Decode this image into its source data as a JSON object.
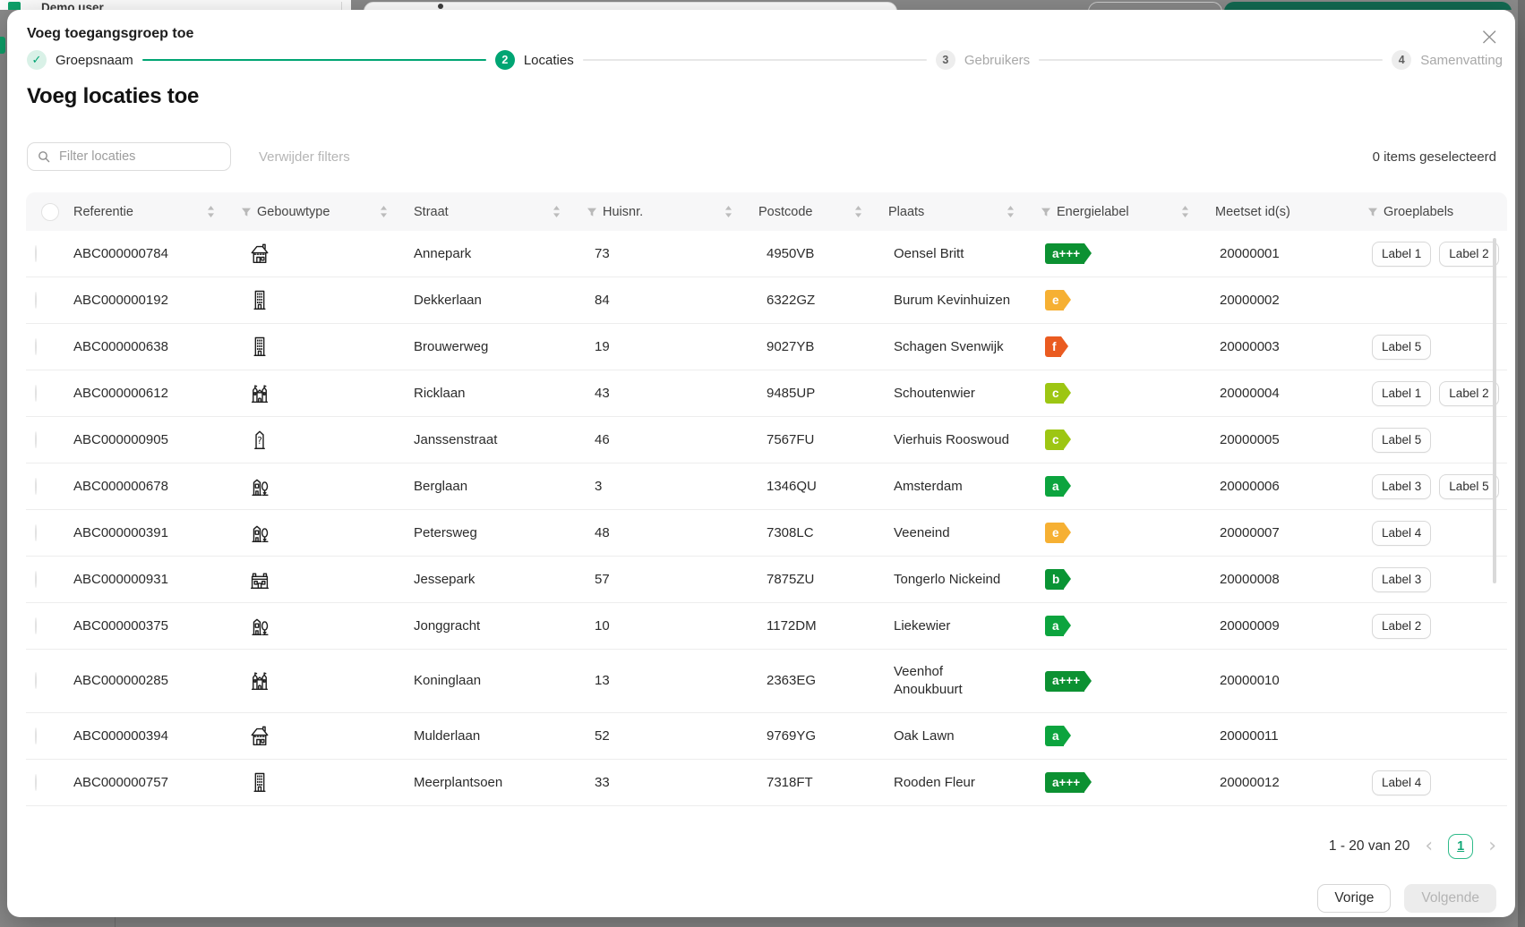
{
  "background": {
    "user_label": "Demo user"
  },
  "modal": {
    "title": "Voeg toegangsgroep toe",
    "close_symbol": "×",
    "heading": "Voeg locaties toe",
    "steps": [
      {
        "marker": "✓",
        "label": "Groepsnaam",
        "state": "done"
      },
      {
        "marker": "2",
        "label": "Locaties",
        "state": "active"
      },
      {
        "marker": "3",
        "label": "Gebruikers",
        "state": "todo"
      },
      {
        "marker": "4",
        "label": "Samenvatting",
        "state": "todo"
      }
    ]
  },
  "filters": {
    "placeholder": "Filter locaties",
    "clear_label": "Verwijder filters",
    "selected_count": "0 items geselecteerd"
  },
  "table": {
    "columns": [
      {
        "type": "checkbox",
        "label": ""
      },
      {
        "label": "Referentie",
        "sortable": true,
        "filterable": false
      },
      {
        "label": "Gebouwtype",
        "sortable": true,
        "filterable": true
      },
      {
        "label": "Straat",
        "sortable": true,
        "filterable": false
      },
      {
        "label": "Huisnr.",
        "sortable": true,
        "filterable": true
      },
      {
        "label": "Postcode",
        "sortable": true,
        "filterable": false
      },
      {
        "label": "Plaats",
        "sortable": true,
        "filterable": false
      },
      {
        "label": "Energielabel",
        "sortable": true,
        "filterable": true
      },
      {
        "label": "Meetset id(s)",
        "sortable": false,
        "filterable": false
      },
      {
        "label": "Groeplabels",
        "sortable": false,
        "filterable": true
      }
    ],
    "rows": [
      {
        "referentie": "ABC000000784",
        "gebouwtype": "house-icon",
        "straat": "Annepark",
        "huisnr": "73",
        "postcode": "4950VB",
        "plaats": "Oensel Britt",
        "energielabel": "a+++",
        "meetset": "20000001",
        "groeplabels": [
          "Label 1",
          "Label 2"
        ]
      },
      {
        "referentie": "ABC000000192",
        "gebouwtype": "apartment-icon",
        "straat": "Dekkerlaan",
        "huisnr": "84",
        "postcode": "6322GZ",
        "plaats": "Burum Kevinhuizen",
        "energielabel": "e",
        "meetset": "20000002",
        "groeplabels": []
      },
      {
        "referentie": "ABC000000638",
        "gebouwtype": "apartment-icon",
        "straat": "Brouwerweg",
        "huisnr": "19",
        "postcode": "9027YB",
        "plaats": "Schagen Svenwijk",
        "energielabel": "f",
        "meetset": "20000003",
        "groeplabels": [
          "Label 5"
        ]
      },
      {
        "referentie": "ABC000000612",
        "gebouwtype": "church-icon",
        "straat": "Ricklaan",
        "huisnr": "43",
        "postcode": "9485UP",
        "plaats": "Schoutenwier",
        "energielabel": "c",
        "meetset": "20000004",
        "groeplabels": [
          "Label 1",
          "Label 2"
        ]
      },
      {
        "referentie": "ABC000000905",
        "gebouwtype": "unknown-building-icon",
        "straat": "Janssenstraat",
        "huisnr": "46",
        "postcode": "7567FU",
        "plaats": "Vierhuis Rooswoud",
        "energielabel": "c",
        "meetset": "20000005",
        "groeplabels": [
          "Label 5"
        ]
      },
      {
        "referentie": "ABC000000678",
        "gebouwtype": "building-tree-icon",
        "straat": "Berglaan",
        "huisnr": "3",
        "postcode": "1346QU",
        "plaats": "Amsterdam",
        "energielabel": "a",
        "meetset": "20000006",
        "groeplabels": [
          "Label 3",
          "Label 5"
        ]
      },
      {
        "referentie": "ABC000000391",
        "gebouwtype": "building-tree-icon",
        "straat": "Petersweg",
        "huisnr": "48",
        "postcode": "7308LC",
        "plaats": "Veeneind",
        "energielabel": "e",
        "meetset": "20000007",
        "groeplabels": [
          "Label 4"
        ]
      },
      {
        "referentie": "ABC000000931",
        "gebouwtype": "mansion-icon",
        "straat": "Jessepark",
        "huisnr": "57",
        "postcode": "7875ZU",
        "plaats": "Tongerlo Nickeind",
        "energielabel": "b",
        "meetset": "20000008",
        "groeplabels": [
          "Label 3"
        ]
      },
      {
        "referentie": "ABC000000375",
        "gebouwtype": "building-tree-icon",
        "straat": "Jonggracht",
        "huisnr": "10",
        "postcode": "1172DM",
        "plaats": "Liekewier",
        "energielabel": "a",
        "meetset": "20000009",
        "groeplabels": [
          "Label 2"
        ]
      },
      {
        "referentie": "ABC000000285",
        "gebouwtype": "church-icon",
        "straat": "Koninglaan",
        "huisnr": "13",
        "postcode": "2363EG",
        "plaats": "Veenhof\nAnoukbuurt",
        "energielabel": "a+++",
        "meetset": "20000010",
        "groeplabels": []
      },
      {
        "referentie": "ABC000000394",
        "gebouwtype": "house-icon",
        "straat": "Mulderlaan",
        "huisnr": "52",
        "postcode": "9769YG",
        "plaats": "Oak Lawn",
        "energielabel": "a",
        "meetset": "20000011",
        "groeplabels": []
      },
      {
        "referentie": "ABC000000757",
        "gebouwtype": "apartment-icon",
        "straat": "Meerplantsoen",
        "huisnr": "33",
        "postcode": "7318FT",
        "plaats": "Rooden Fleur",
        "energielabel": "a+++",
        "meetset": "20000012",
        "groeplabels": [
          "Label 4"
        ]
      }
    ]
  },
  "energy_colors": {
    "a+++": "#0c9132",
    "a": "#0ca43e",
    "b": "#0a9434",
    "c": "#9dc613",
    "e": "#f6b033",
    "f": "#ea5b20"
  },
  "accent_color": "#00a573",
  "pagination": {
    "summary": "1 - 20 van 20",
    "prev_symbol": "‹",
    "page": "1",
    "next_symbol": "›"
  },
  "footer": {
    "prev_label": "Vorige",
    "next_label": "Volgende"
  }
}
